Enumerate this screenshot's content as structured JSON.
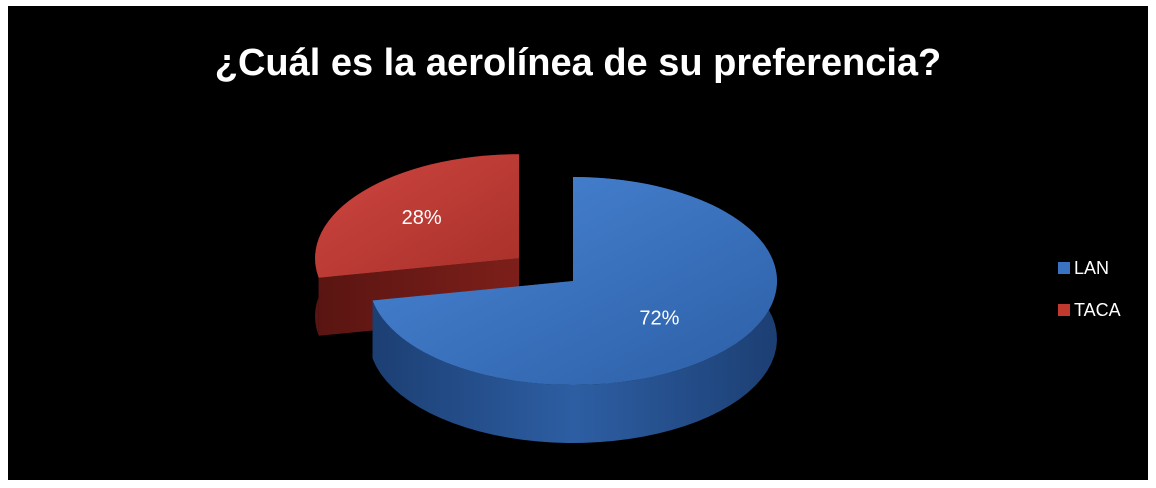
{
  "chart_data": {
    "type": "pie",
    "title": "¿Cuál es la aerolínea de su preferencia?",
    "categories": [
      "LAN",
      "TACA"
    ],
    "values": [
      72,
      28
    ],
    "data_labels": [
      "72%",
      "28%"
    ],
    "colors": [
      "#3a72c2",
      "#c0392f"
    ],
    "exploded": true,
    "three_d": true,
    "legend_position": "right"
  }
}
